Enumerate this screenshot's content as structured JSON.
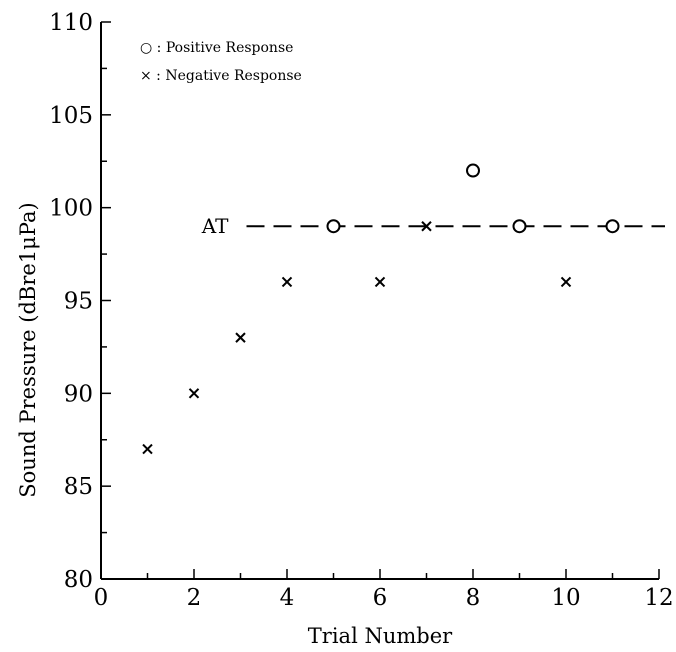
{
  "chart_data": {
    "type": "scatter",
    "xlabel": "Trial Number",
    "ylabel": "Sound Pressure (dBre1μPa)",
    "xlim": [
      0,
      12
    ],
    "ylim": [
      80,
      110
    ],
    "x_ticks": [
      0,
      2,
      4,
      6,
      8,
      10,
      12
    ],
    "y_ticks": [
      80,
      85,
      90,
      95,
      100,
      105,
      110
    ],
    "grid": false,
    "legend_placement": "top-left",
    "series": [
      {
        "name": "Positive Response",
        "legend_label": "○ : Positive Response",
        "marker": "circle",
        "points": [
          {
            "x": 5,
            "y": 99
          },
          {
            "x": 8,
            "y": 102
          },
          {
            "x": 9,
            "y": 99
          },
          {
            "x": 11,
            "y": 99
          }
        ]
      },
      {
        "name": "Negative Response",
        "legend_label": "× : Negative Response",
        "marker": "cross",
        "points": [
          {
            "x": 1,
            "y": 87
          },
          {
            "x": 2,
            "y": 90
          },
          {
            "x": 3,
            "y": 93
          },
          {
            "x": 4,
            "y": 96
          },
          {
            "x": 6,
            "y": 96
          },
          {
            "x": 7,
            "y": 99
          },
          {
            "x": 10,
            "y": 96
          }
        ]
      }
    ],
    "threshold": {
      "label": "AT",
      "y": 99,
      "x_start": 3,
      "x_end": 12,
      "style": "dashed"
    }
  }
}
